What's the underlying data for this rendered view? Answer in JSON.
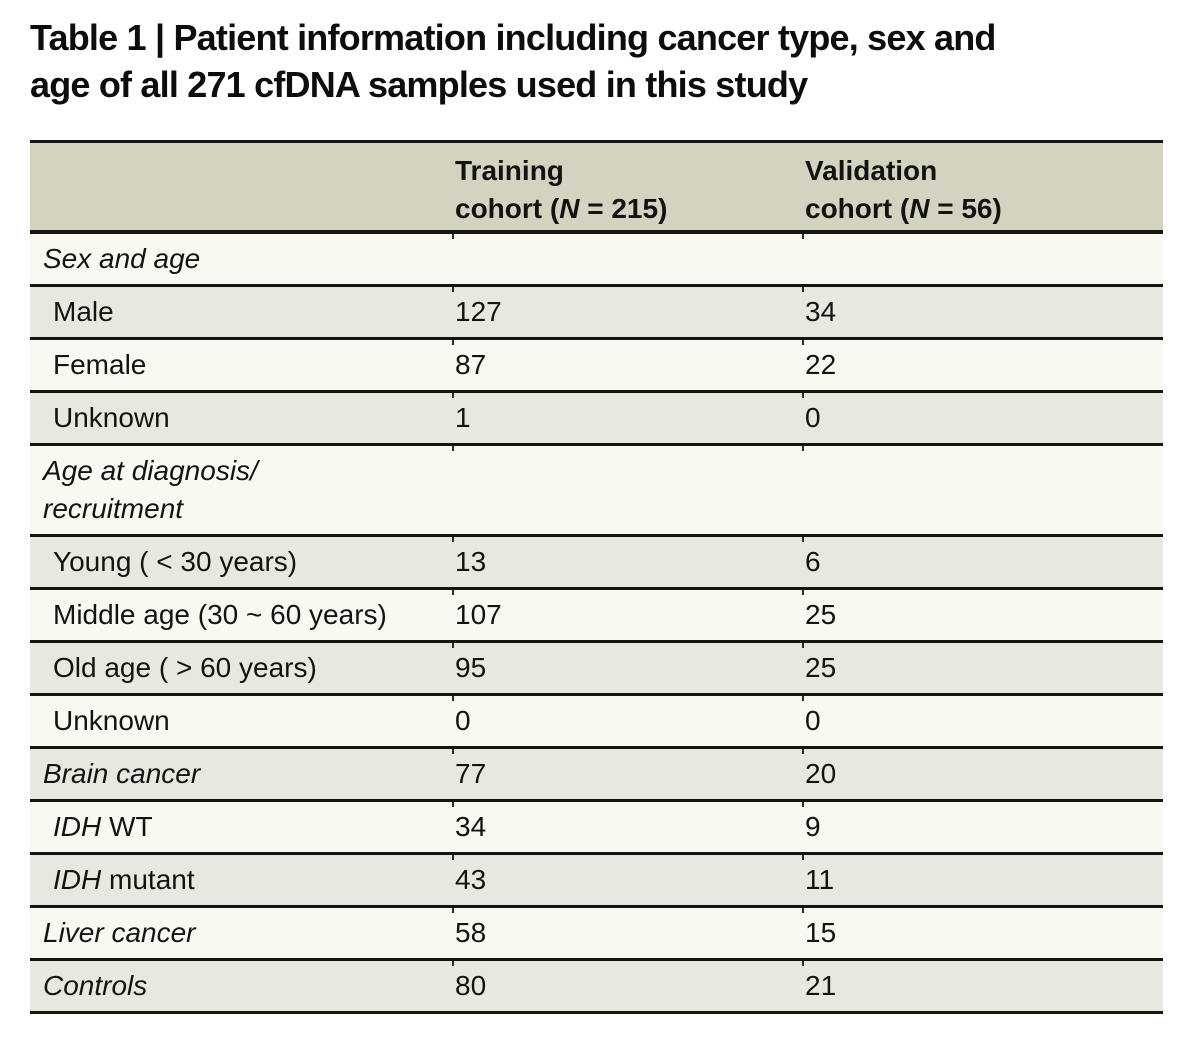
{
  "colors": {
    "page_bg": "#ffffff",
    "text": "#131313",
    "rule": "#151515",
    "header_bg": "#d4d3c0",
    "row_gray": "#e9e8df",
    "row_light": "#f9f9f2"
  },
  "title": {
    "line1": "Table 1 | Patient information including cancer type, sex and",
    "line2": "age of all 271 cfDNA samples used in this study"
  },
  "table": {
    "header": {
      "training": {
        "line1": "Training",
        "line2_pre": "cohort (",
        "n": "N",
        "line2_post": " = 215)"
      },
      "validation": {
        "line1": "Validation",
        "line2_pre": "cohort (",
        "n": "N",
        "line2_post": " = 56)"
      }
    },
    "rows": [
      {
        "name": "sex-and-age",
        "style": "section",
        "shade": "light",
        "label": [
          {
            "t": "Sex and age",
            "i": true
          }
        ],
        "training": "",
        "validation": ""
      },
      {
        "name": "male",
        "style": "item",
        "shade": "gray",
        "label": [
          {
            "t": "Male",
            "i": false
          }
        ],
        "training": "127",
        "validation": "34"
      },
      {
        "name": "female",
        "style": "item",
        "shade": "light",
        "label": [
          {
            "t": "Female",
            "i": false
          }
        ],
        "training": "87",
        "validation": "22"
      },
      {
        "name": "unknown-sex",
        "style": "item",
        "shade": "gray",
        "label": [
          {
            "t": "Unknown",
            "i": false
          }
        ],
        "training": "1",
        "validation": "0"
      },
      {
        "name": "age-at-diagnosis",
        "style": "section",
        "shade": "light",
        "label": [
          {
            "t": "Age at diagnosis/",
            "i": true
          }
        ],
        "label2": [
          {
            "t": "recruitment",
            "i": true
          }
        ],
        "training": "",
        "validation": ""
      },
      {
        "name": "young",
        "style": "item",
        "shade": "gray",
        "label": [
          {
            "t": "Young ( < 30 years)",
            "i": false
          }
        ],
        "training": "13",
        "validation": "6"
      },
      {
        "name": "middle-age",
        "style": "item",
        "shade": "light",
        "label": [
          {
            "t": "Middle age (30 ~ 60 years)",
            "i": false
          }
        ],
        "training": "107",
        "validation": "25"
      },
      {
        "name": "old-age",
        "style": "item",
        "shade": "gray",
        "label": [
          {
            "t": "Old age ( > 60 years)",
            "i": false
          }
        ],
        "training": "95",
        "validation": "25"
      },
      {
        "name": "unknown-age",
        "style": "item",
        "shade": "light",
        "label": [
          {
            "t": "Unknown",
            "i": false
          }
        ],
        "training": "0",
        "validation": "0"
      },
      {
        "name": "brain-cancer",
        "style": "section",
        "shade": "gray",
        "label": [
          {
            "t": "Brain cancer",
            "i": true
          }
        ],
        "training": "77",
        "validation": "20"
      },
      {
        "name": "idh-wt",
        "style": "item",
        "shade": "light",
        "label": [
          {
            "t": "IDH",
            "i": true
          },
          {
            "t": " WT",
            "i": false
          }
        ],
        "training": "34",
        "validation": "9"
      },
      {
        "name": "idh-mutant",
        "style": "item",
        "shade": "gray",
        "label": [
          {
            "t": "IDH",
            "i": true
          },
          {
            "t": " mutant",
            "i": false
          }
        ],
        "training": "43",
        "validation": "11"
      },
      {
        "name": "liver-cancer",
        "style": "section",
        "shade": "light",
        "label": [
          {
            "t": "Liver cancer",
            "i": true
          }
        ],
        "training": "58",
        "validation": "15"
      },
      {
        "name": "controls",
        "style": "section",
        "shade": "gray",
        "label": [
          {
            "t": "Controls",
            "i": true
          }
        ],
        "training": "80",
        "validation": "21"
      }
    ]
  }
}
